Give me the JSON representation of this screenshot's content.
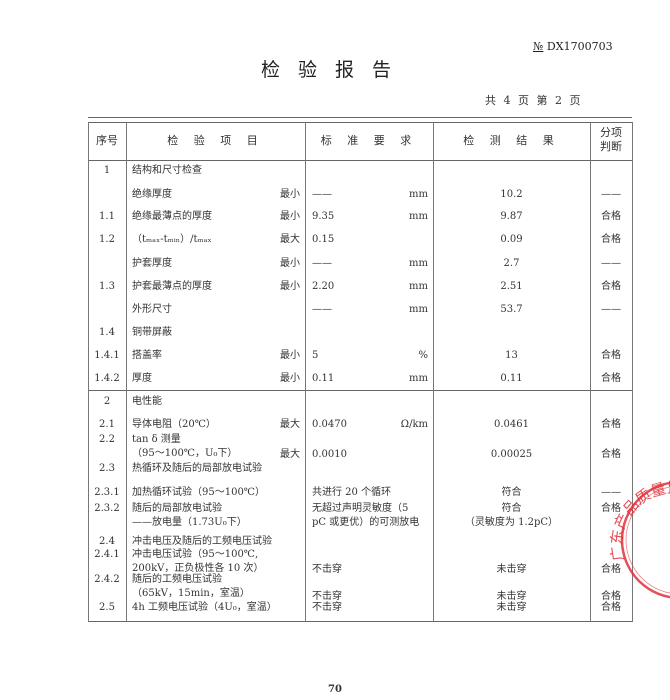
{
  "header": {
    "doc_no_prefix": "№",
    "doc_no": "DX1700703",
    "title": "检验报告",
    "page_info": "共 4 页 第 2 页"
  },
  "table": {
    "columns": [
      "序号",
      "检 验 项 目",
      "标 准 要 求",
      "检 测 结 果",
      "分项\n判断"
    ],
    "rows": [
      {
        "no": "1",
        "item": "结构和尺寸检查",
        "qual": "",
        "std": "",
        "unit": "",
        "result": "",
        "verdict": ""
      },
      {
        "no": "",
        "item": "绝缘厚度",
        "qual": "最小",
        "std": "——",
        "unit": "mm",
        "result": "10.2",
        "verdict": "——"
      },
      {
        "no": "1.1",
        "item": "绝缘最薄点的厚度",
        "qual": "最小",
        "std": "9.35",
        "unit": "mm",
        "result": "9.87",
        "verdict": "合格"
      },
      {
        "no": "1.2",
        "item": "（tₘₐₓ-tₘᵢₙ）/tₘₐₓ",
        "qual": "最大",
        "std": "0.15",
        "unit": "",
        "result": "0.09",
        "verdict": "合格"
      },
      {
        "no": "",
        "item": "护套厚度",
        "qual": "最小",
        "std": "——",
        "unit": "mm",
        "result": "2.7",
        "verdict": "——"
      },
      {
        "no": "1.3",
        "item": "护套最薄点的厚度",
        "qual": "最小",
        "std": "2.20",
        "unit": "mm",
        "result": "2.51",
        "verdict": "合格"
      },
      {
        "no": "",
        "item": "外形尺寸",
        "qual": "",
        "std": "——",
        "unit": "mm",
        "result": "53.7",
        "verdict": "——"
      },
      {
        "no": "1.4",
        "item": "铜带屏蔽",
        "qual": "",
        "std": "",
        "unit": "",
        "result": "",
        "verdict": ""
      },
      {
        "no": "1.4.1",
        "item": "搭盖率",
        "qual": "最小",
        "std": "5",
        "unit": "%",
        "result": "13",
        "verdict": "合格"
      },
      {
        "no": "1.4.2",
        "item": "厚度",
        "qual": "最小",
        "std": "0.11",
        "unit": "mm",
        "result": "0.11",
        "verdict": "合格"
      },
      {
        "no": "2",
        "item": "电性能",
        "qual": "",
        "std": "",
        "unit": "",
        "result": "",
        "verdict": ""
      },
      {
        "no": "2.1",
        "item": "导体电阻（20℃）",
        "qual": "最大",
        "std": "0.0470",
        "unit": "Ω/km",
        "result": "0.0461",
        "verdict": "合格"
      },
      {
        "no": "2.2",
        "item": "tan δ 测量\n（95～100℃，U₀下）",
        "qual": "最大",
        "std": "0.0010",
        "unit": "",
        "result": "0.00025",
        "verdict": "合格"
      },
      {
        "no": "2.3",
        "item": "热循环及随后的局部放电试验",
        "qual": "",
        "std": "",
        "unit": "",
        "result": "",
        "verdict": ""
      },
      {
        "no": "2.3.1",
        "item": "加热循环试验（95～100℃）",
        "qual": "",
        "std": "共进行 20 个循环",
        "unit": "",
        "result": "符合",
        "verdict": "——"
      },
      {
        "no": "2.3.2",
        "item": "随后的局部放电试验\n——放电量（1.73U₀下）",
        "qual": "",
        "std": "无超过声明灵敏度（5\npC 或更优）的可测放电",
        "unit": "",
        "result": "符合\n（灵敏度为 1.2pC）",
        "verdict": "合格"
      },
      {
        "no": "2.4",
        "item": "冲击电压及随后的工频电压试验",
        "qual": "",
        "std": "",
        "unit": "",
        "result": "",
        "verdict": ""
      },
      {
        "no": "2.4.1",
        "item": "冲击电压试验（95～100℃,\n200kV，正负极性各 10 次）",
        "qual": "",
        "std": "不击穿",
        "unit": "",
        "result": "未击穿",
        "verdict": "合格"
      },
      {
        "no": "2.4.2",
        "item": "随后的工频电压试验\n（65kV，15min，室温）",
        "qual": "",
        "std": "不击穿",
        "unit": "",
        "result": "未击穿",
        "verdict": "合格"
      },
      {
        "no": "2.5",
        "item": "4h 工频电压试验（4U₀，室温）",
        "qual": "",
        "std": "不击穿",
        "unit": "",
        "result": "未击穿",
        "verdict": "合格"
      }
    ]
  },
  "stamp": {
    "text": "广东产品质量监督检验",
    "color": "#e0303a"
  },
  "footer": {
    "page_number": "70"
  }
}
